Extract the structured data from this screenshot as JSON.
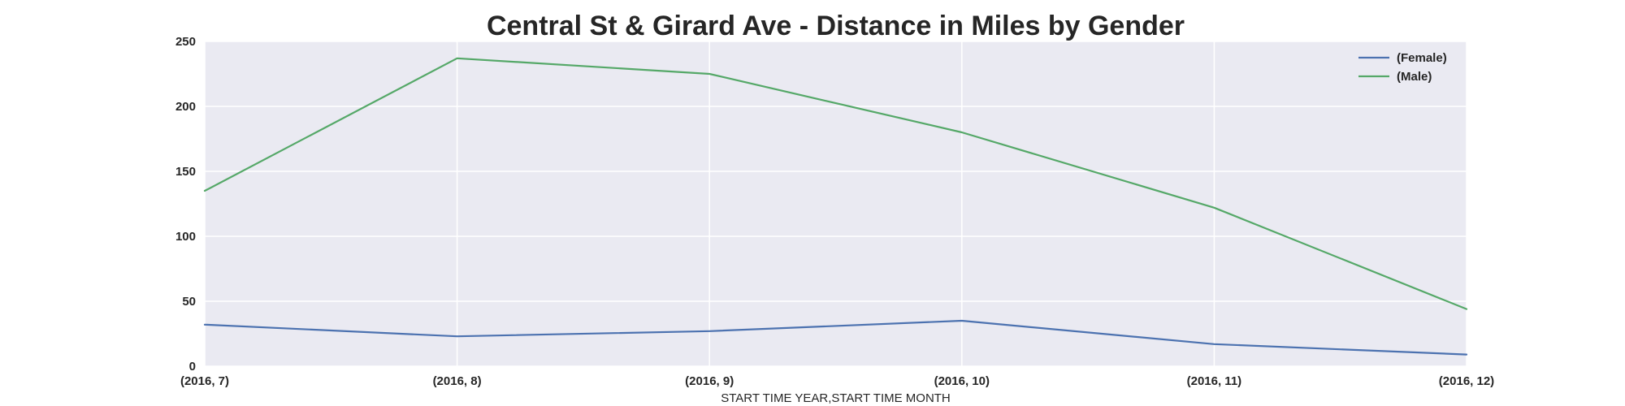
{
  "chart_data": {
    "type": "line",
    "title": "Central St & Girard Ave - Distance in Miles by Gender",
    "xlabel": "START TIME YEAR,START TIME MONTH",
    "ylabel": "",
    "categories": [
      "(2016, 7)",
      "(2016, 8)",
      "(2016, 9)",
      "(2016, 10)",
      "(2016, 11)",
      "(2016, 12)"
    ],
    "ylim": [
      0,
      250
    ],
    "yticks": [
      0,
      50,
      100,
      150,
      200,
      250
    ],
    "grid": true,
    "legend_position": "top-right",
    "series": [
      {
        "name": "(Female)",
        "color": "#4c72b0",
        "values": [
          32,
          23,
          27,
          35,
          17,
          9
        ]
      },
      {
        "name": "(Male)",
        "color": "#55a868",
        "values": [
          135,
          237,
          225,
          180,
          122,
          44
        ]
      }
    ],
    "colors": {
      "plot_background": "#eaeaf2",
      "grid": "#ffffff",
      "text": "#262626"
    }
  }
}
